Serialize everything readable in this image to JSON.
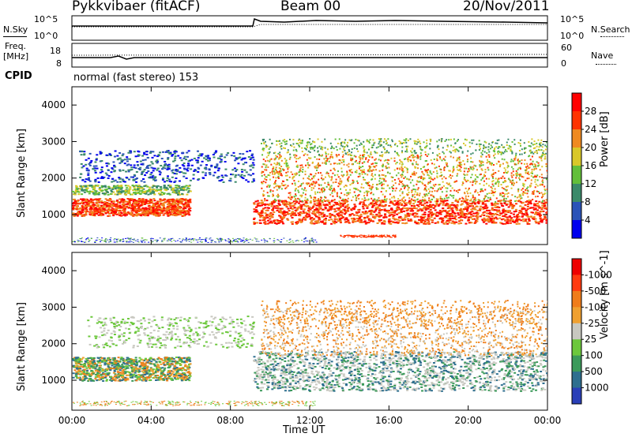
{
  "header": {
    "station": "Pykkvibaer (fitACF)",
    "beam": "Beam 00",
    "date": "20/Nov/2011"
  },
  "sky_panel": {
    "left_label": "N.Sky",
    "left_ticks": [
      "10^5",
      "10^0"
    ],
    "right_ticks": [
      "10^5",
      "10^0"
    ],
    "right_label": "N.Search"
  },
  "freq_panel": {
    "left_label_line1": "Freq.",
    "left_label_line2": "[MHz]",
    "left_ticks": [
      "18",
      "8"
    ],
    "right_ticks": [
      "60",
      "0"
    ],
    "right_label": "Nave"
  },
  "cpid": {
    "label": "CPID",
    "value": "normal (fast stereo) 153"
  },
  "chart_data": [
    {
      "type": "heatmap",
      "title": "",
      "ylabel": "Slant Range [km]",
      "ylim": [
        180,
        4500
      ],
      "y_ticks": [
        "1000",
        "2000",
        "3000",
        "4000"
      ],
      "colorbar_label": "Power [dB]",
      "colorbar_ticks": [
        "4",
        "8",
        "12",
        "16",
        "20",
        "24",
        "28"
      ],
      "colorbar_colors": [
        "#0000ee",
        "#2b53b8",
        "#3b8a6a",
        "#63bf3a",
        "#d9c829",
        "#ef8a21",
        "#ff3300",
        "#ff0000"
      ]
    },
    {
      "type": "heatmap",
      "title": "",
      "ylabel": "Slant Range [km]",
      "ylim": [
        180,
        4500
      ],
      "y_ticks": [
        "1000",
        "2000",
        "3000",
        "4000"
      ],
      "colorbar_label": "Velocity [m s^-1]",
      "colorbar_ticks": [
        "1000",
        "500",
        "100",
        "25",
        "-25",
        "-100",
        "-500",
        "-1000"
      ],
      "colorbar_colors": [
        "#2a3fb8",
        "#2e6f8f",
        "#3b9a5a",
        "#6cc83c",
        "#c8c8c0",
        "#efa030",
        "#ef7c1a",
        "#ff3a10",
        "#ee0000"
      ]
    }
  ],
  "x_axis": {
    "label": "Time UT",
    "ticks": [
      "00:00",
      "04:00",
      "08:00",
      "12:00",
      "16:00",
      "20:00",
      "00:00"
    ]
  }
}
